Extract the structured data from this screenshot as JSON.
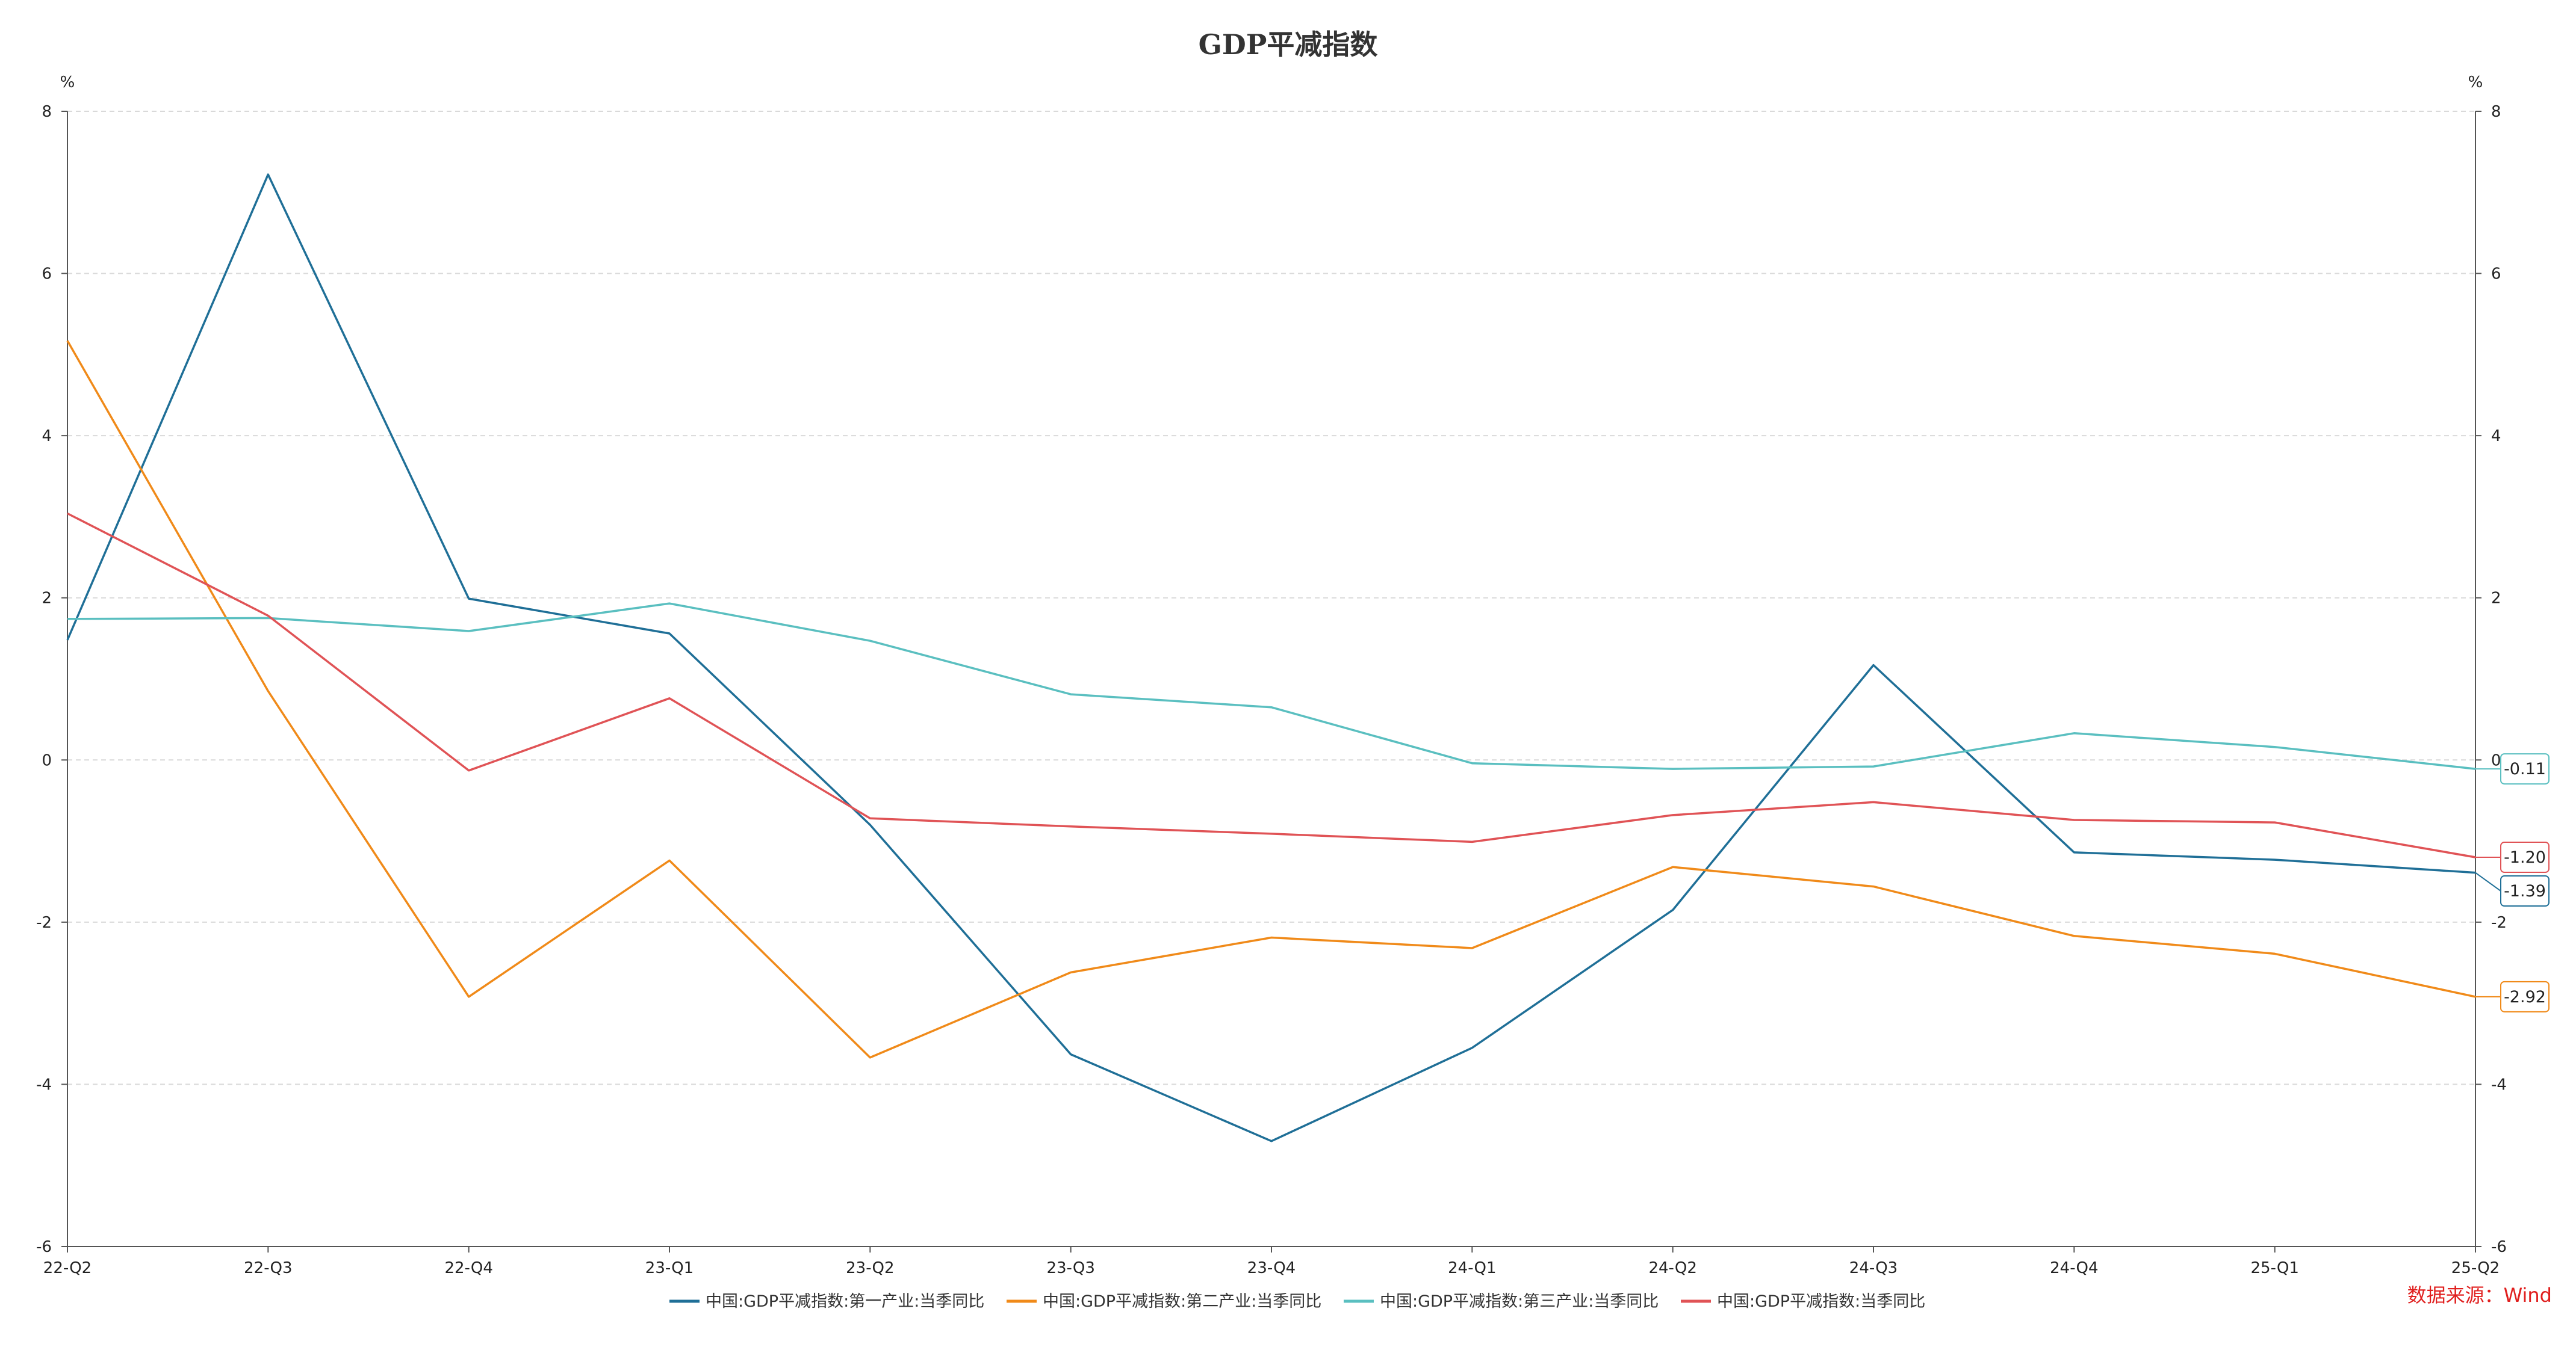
{
  "chart_data": {
    "type": "line",
    "title": "GDP平减指数",
    "y_unit_left": "%",
    "y_unit_right": "%",
    "ylim": [
      -6,
      8
    ],
    "y_ticks": [
      8,
      6,
      4,
      2,
      0,
      -2,
      -4,
      -6
    ],
    "grid": true,
    "legend_position": "bottom",
    "categories": [
      "22-Q2",
      "22-Q3",
      "22-Q4",
      "23-Q1",
      "23-Q2",
      "23-Q3",
      "23-Q4",
      "24-Q1",
      "24-Q2",
      "24-Q3",
      "24-Q4",
      "25-Q1",
      "25-Q2"
    ],
    "series": [
      {
        "name": "中国:GDP平减指数:第一产业:当季同比",
        "color": "#1f6f97",
        "values": [
          1.48,
          7.22,
          1.99,
          1.56,
          -0.8,
          -3.63,
          -4.7,
          -3.55,
          -1.85,
          1.17,
          -1.14,
          -1.23,
          -1.39
        ],
        "end_label": "-1.39"
      },
      {
        "name": "中国:GDP平减指数:第二产业:当季同比",
        "color": "#f08a19",
        "values": [
          5.17,
          0.85,
          -2.92,
          -1.24,
          -3.67,
          -2.62,
          -2.19,
          -2.32,
          -1.32,
          -1.56,
          -2.17,
          -2.39,
          -2.92
        ],
        "end_label": "-2.92"
      },
      {
        "name": "中国:GDP平减指数:第三产业:当季同比",
        "color": "#5abfc0",
        "values": [
          1.74,
          1.75,
          1.59,
          1.93,
          1.47,
          0.81,
          0.65,
          -0.04,
          -0.11,
          -0.08,
          0.33,
          0.16,
          -0.11
        ],
        "end_label": "-0.11"
      },
      {
        "name": "中国:GDP平减指数:当季同比",
        "color": "#e05356",
        "values": [
          3.04,
          1.78,
          -0.13,
          0.76,
          -0.72,
          -0.82,
          -0.91,
          -1.01,
          -0.68,
          -0.52,
          -0.74,
          -0.77,
          -1.2
        ],
        "end_label": "-1.20"
      }
    ],
    "source": "数据来源：Wind"
  }
}
